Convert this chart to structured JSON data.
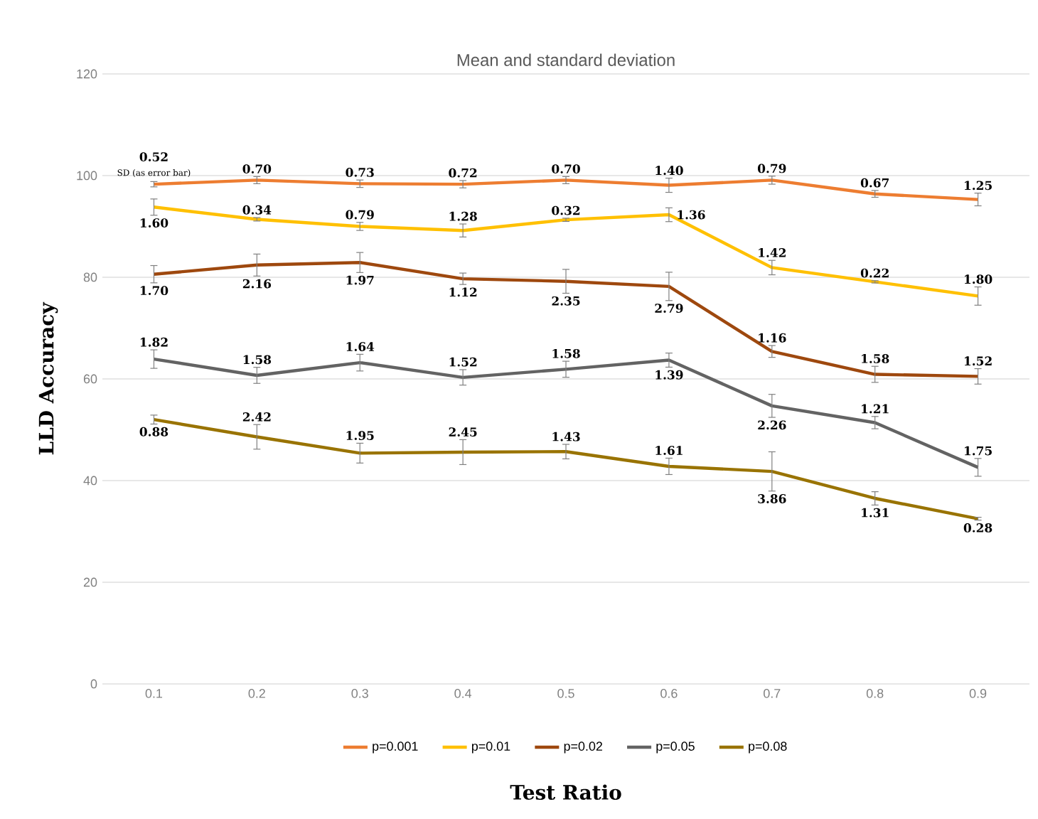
{
  "chart_data": {
    "type": "line",
    "title": "Mean and standard deviation",
    "xlabel": "Test Ratio",
    "ylabel": "LLD Accuracy",
    "categories": [
      "0.1",
      "0.2",
      "0.3",
      "0.4",
      "0.5",
      "0.6",
      "0.7",
      "0.8",
      "0.9"
    ],
    "ylim": [
      0,
      120
    ],
    "yticks": [
      0,
      20,
      40,
      60,
      80,
      100,
      120
    ],
    "grid": "y",
    "legend": "bottom",
    "annotations": [
      {
        "text": "0.52",
        "x": "0.1",
        "y": 98.3
      },
      {
        "text": "0.70",
        "x": "0.2",
        "y": 99.1
      },
      {
        "text": "0.73",
        "x": "0.3",
        "y": 98.4
      },
      {
        "text": "0.72",
        "x": "0.4",
        "y": 98.3
      },
      {
        "text": "0.70",
        "x": "0.5",
        "y": 99.1
      },
      {
        "text": "1.40",
        "x": "0.6",
        "y": 98.1
      },
      {
        "text": "0.79",
        "x": "0.7",
        "y": 99.1
      },
      {
        "text": "0.67",
        "x": "0.8",
        "y": 96.4
      },
      {
        "text": "1.25",
        "x": "0.9",
        "y": 95.3
      },
      {
        "text": "1.60",
        "x": "0.1",
        "y": 93.8
      },
      {
        "text": "0.34",
        "x": "0.2",
        "y": 91.4
      },
      {
        "text": "0.79",
        "x": "0.3",
        "y": 90.0
      },
      {
        "text": "1.28",
        "x": "0.4",
        "y": 89.2
      },
      {
        "text": "0.32",
        "x": "0.5",
        "y": 91.3
      },
      {
        "text": "1.36",
        "x": "0.6",
        "y": 92.3
      },
      {
        "text": "1.42",
        "x": "0.7",
        "y": 81.9
      },
      {
        "text": "0.22",
        "x": "0.8",
        "y": 79.1
      },
      {
        "text": "1.80",
        "x": "0.9",
        "y": 76.3
      },
      {
        "text": "1.70",
        "x": "0.1",
        "y": 80.6
      },
      {
        "text": "2.16",
        "x": "0.2",
        "y": 82.4
      },
      {
        "text": "1.97",
        "x": "0.3",
        "y": 82.9
      },
      {
        "text": "1.12",
        "x": "0.4",
        "y": 79.7
      },
      {
        "text": "2.35",
        "x": "0.5",
        "y": 79.2
      },
      {
        "text": "2.79",
        "x": "0.6",
        "y": 78.2
      },
      {
        "text": "1.16",
        "x": "0.7",
        "y": 65.4
      },
      {
        "text": "1.58",
        "x": "0.8",
        "y": 60.9
      },
      {
        "text": "1.52",
        "x": "0.9",
        "y": 60.5
      },
      {
        "text": "1.82",
        "x": "0.1",
        "y": 63.9
      },
      {
        "text": "1.58",
        "x": "0.2",
        "y": 60.7
      },
      {
        "text": "1.64",
        "x": "0.3",
        "y": 63.2
      },
      {
        "text": "1.52",
        "x": "0.4",
        "y": 60.3
      },
      {
        "text": "1.58",
        "x": "0.5",
        "y": 61.9
      },
      {
        "text": "1.39",
        "x": "0.6",
        "y": 63.7
      },
      {
        "text": "2.26",
        "x": "0.7",
        "y": 54.7
      },
      {
        "text": "1.21",
        "x": "0.8",
        "y": 51.4
      },
      {
        "text": "1.75",
        "x": "0.9",
        "y": 42.6
      },
      {
        "text": "0.88",
        "x": "0.1",
        "y": 52.0
      },
      {
        "text": "2.42",
        "x": "0.2",
        "y": 48.6
      },
      {
        "text": "1.95",
        "x": "0.3",
        "y": 45.4
      },
      {
        "text": "2.45",
        "x": "0.4",
        "y": 45.6
      },
      {
        "text": "1.43",
        "x": "0.5",
        "y": 45.7
      },
      {
        "text": "1.61",
        "x": "0.6",
        "y": 42.8
      },
      {
        "text": "3.86",
        "x": "0.7",
        "y": 41.8
      },
      {
        "text": "1.31",
        "x": "0.8",
        "y": 36.5
      },
      {
        "text": "0.28",
        "x": "0.9",
        "y": 32.5
      },
      "SD (as error bar)"
    ],
    "series": [
      {
        "name": "p=0.001",
        "color": "#ed7d31",
        "values": [
          98.3,
          99.1,
          98.4,
          98.3,
          99.1,
          98.1,
          99.1,
          96.4,
          95.3
        ],
        "errors": [
          0.52,
          0.7,
          0.73,
          0.72,
          0.7,
          1.4,
          0.79,
          0.67,
          1.25
        ]
      },
      {
        "name": "p=0.01",
        "color": "#ffc000",
        "values": [
          93.8,
          91.4,
          90.0,
          89.2,
          91.3,
          92.3,
          81.9,
          79.1,
          76.3
        ],
        "errors": [
          1.6,
          0.34,
          0.79,
          1.28,
          0.32,
          1.36,
          1.42,
          0.22,
          1.8
        ]
      },
      {
        "name": "p=0.02",
        "color": "#9e480e",
        "values": [
          80.6,
          82.4,
          82.9,
          79.7,
          79.2,
          78.2,
          65.4,
          60.9,
          60.5
        ],
        "errors": [
          1.7,
          2.16,
          1.97,
          1.12,
          2.35,
          2.79,
          1.16,
          1.58,
          1.52
        ]
      },
      {
        "name": "p=0.05",
        "color": "#636363",
        "values": [
          63.9,
          60.7,
          63.2,
          60.3,
          61.9,
          63.7,
          54.7,
          51.4,
          42.6
        ],
        "errors": [
          1.82,
          1.58,
          1.64,
          1.52,
          1.58,
          1.39,
          2.26,
          1.21,
          1.75
        ]
      },
      {
        "name": "p=0.08",
        "color": "#997300",
        "values": [
          52.0,
          48.6,
          45.4,
          45.6,
          45.7,
          42.8,
          41.8,
          36.5,
          32.5
        ],
        "errors": [
          0.88,
          2.42,
          1.95,
          2.45,
          1.43,
          1.61,
          3.86,
          1.31,
          0.28
        ]
      }
    ]
  }
}
